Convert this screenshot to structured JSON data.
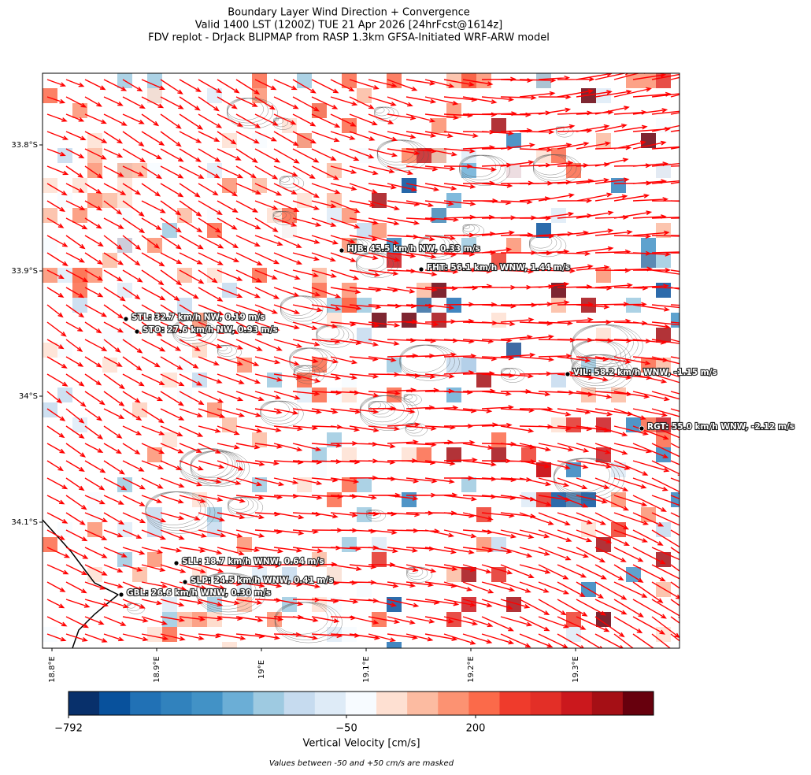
{
  "title": [
    "Boundary Layer Wind Direction + Convergence",
    "Valid 1400 LST (1200Z) TUE 21 Apr 2026 [24hrFcst@1614z]",
    "FDV replot - DrJack BLIPMAP from RASP 1.3km GFSA-Initiated WRF-ARW model"
  ],
  "lat_ticks": [
    "33.8°S",
    "33.9°S",
    "34°S",
    "34.1°S"
  ],
  "lon_ticks": [
    "18.8°E",
    "18.9°E",
    "19°E",
    "19.1°E",
    "19.2°E",
    "19.3°E"
  ],
  "stations": [
    "HJB: 45.5 km/h NW, 0.33 m/s",
    "FHT: 56.1 km/h WNW, 1.44 m/s",
    "STL: 32.7 km/h NW, 0.19 m/s",
    "STO: 27.6 km/h NW, 0.93 m/s",
    "VIL: 58.2 km/h WNW, -1.15 m/s",
    "RGT: 55.0 km/h WNW, -2.12 m/s",
    "SLL: 18.7 km/h WNW, 0.64 m/s",
    "SLP: 24.5 km/h WNW, 0.41 m/s",
    "GBL: 26.6 km/h WNW, 0.30 m/s"
  ],
  "colorbar": {
    "label": "Vertical Velocity [cm/s]",
    "ticks": [
      "−792",
      "−50",
      "200"
    ],
    "colors": [
      "#08306b",
      "#08519c",
      "#2171b5",
      "#3182bd",
      "#4292c6",
      "#6baed6",
      "#9ecae1",
      "#c6dbef",
      "#deebf7",
      "#f7fbff",
      "#fee0d2",
      "#fcbba1",
      "#fc9272",
      "#fb6a4a",
      "#ef3b2c",
      "#e32f27",
      "#cb181d",
      "#a50f15",
      "#67000d"
    ]
  },
  "note": "Values between -50 and +50 cm/s are masked"
}
